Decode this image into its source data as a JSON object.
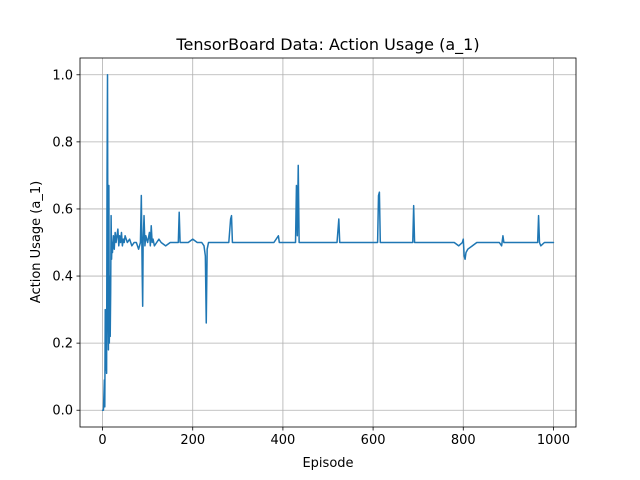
{
  "chart_data": {
    "type": "line",
    "title": "TensorBoard Data: Action Usage (a_1)",
    "xlabel": "Episode",
    "ylabel": "Action Usage (a_1)",
    "xlim": [
      -50,
      1050
    ],
    "ylim": [
      -0.05,
      1.05
    ],
    "xticks": [
      0,
      200,
      400,
      600,
      800,
      1000
    ],
    "xtick_labels": [
      "0",
      "200",
      "400",
      "600",
      "800",
      "1000"
    ],
    "yticks": [
      0.0,
      0.2,
      0.4,
      0.6,
      0.8,
      1.0
    ],
    "ytick_labels": [
      "0.0",
      "0.2",
      "0.4",
      "0.6",
      "0.8",
      "1.0"
    ],
    "grid": true,
    "series_color": "#1f77b4",
    "series": [
      {
        "x": [
          0,
          2,
          4,
          5,
          6,
          7,
          8,
          9,
          10,
          11,
          12,
          13,
          14,
          15,
          16,
          17,
          18,
          19,
          20,
          21,
          22,
          23,
          24,
          25,
          26,
          27,
          28,
          30,
          32,
          34,
          36,
          38,
          40,
          42,
          44,
          46,
          48,
          50,
          55,
          60,
          65,
          70,
          75,
          80,
          84,
          86,
          88,
          89,
          90,
          92,
          94,
          96,
          100,
          104,
          106,
          108,
          110,
          112,
          115,
          120,
          125,
          130,
          140,
          150,
          160,
          168,
          170,
          172,
          175,
          180,
          190,
          200,
          210,
          220,
          225,
          228,
          230,
          232,
          235,
          240,
          250,
          260,
          270,
          280,
          284,
          286,
          288,
          290,
          300,
          320,
          340,
          360,
          380,
          390,
          392,
          400,
          420,
          428,
          430,
          432,
          434,
          436,
          440,
          460,
          480,
          500,
          520,
          524,
          526,
          530,
          540,
          560,
          580,
          590,
          600,
          610,
          612,
          614,
          616,
          620,
          640,
          660,
          680,
          688,
          690,
          692,
          700,
          710,
          720,
          740,
          760,
          780,
          790,
          798,
          800,
          802,
          804,
          806,
          810,
          820,
          830,
          840,
          860,
          880,
          885,
          888,
          890,
          900,
          920,
          940,
          960,
          965,
          967,
          969,
          972,
          980,
          1000
        ],
        "y": [
          0.0,
          0.0,
          0.09,
          0.01,
          0.3,
          0.12,
          0.26,
          0.11,
          0.7,
          1.0,
          0.3,
          0.18,
          0.67,
          0.2,
          0.4,
          0.22,
          0.35,
          0.58,
          0.45,
          0.5,
          0.47,
          0.5,
          0.52,
          0.49,
          0.48,
          0.51,
          0.53,
          0.5,
          0.52,
          0.54,
          0.49,
          0.52,
          0.5,
          0.53,
          0.49,
          0.51,
          0.5,
          0.52,
          0.5,
          0.51,
          0.49,
          0.5,
          0.5,
          0.48,
          0.5,
          0.64,
          0.4,
          0.31,
          0.5,
          0.58,
          0.49,
          0.52,
          0.5,
          0.53,
          0.49,
          0.55,
          0.5,
          0.51,
          0.49,
          0.5,
          0.51,
          0.5,
          0.49,
          0.5,
          0.5,
          0.5,
          0.59,
          0.5,
          0.5,
          0.5,
          0.5,
          0.51,
          0.5,
          0.5,
          0.49,
          0.46,
          0.26,
          0.48,
          0.5,
          0.5,
          0.5,
          0.5,
          0.5,
          0.5,
          0.57,
          0.58,
          0.5,
          0.5,
          0.5,
          0.5,
          0.5,
          0.5,
          0.5,
          0.52,
          0.5,
          0.5,
          0.5,
          0.5,
          0.67,
          0.52,
          0.73,
          0.5,
          0.5,
          0.5,
          0.5,
          0.5,
          0.5,
          0.57,
          0.5,
          0.5,
          0.5,
          0.5,
          0.5,
          0.5,
          0.5,
          0.5,
          0.64,
          0.65,
          0.5,
          0.5,
          0.5,
          0.5,
          0.5,
          0.5,
          0.61,
          0.5,
          0.5,
          0.5,
          0.5,
          0.5,
          0.5,
          0.5,
          0.49,
          0.5,
          0.51,
          0.46,
          0.45,
          0.47,
          0.48,
          0.49,
          0.5,
          0.5,
          0.5,
          0.5,
          0.49,
          0.52,
          0.5,
          0.5,
          0.5,
          0.5,
          0.5,
          0.5,
          0.58,
          0.5,
          0.49,
          0.5,
          0.5
        ]
      }
    ]
  }
}
